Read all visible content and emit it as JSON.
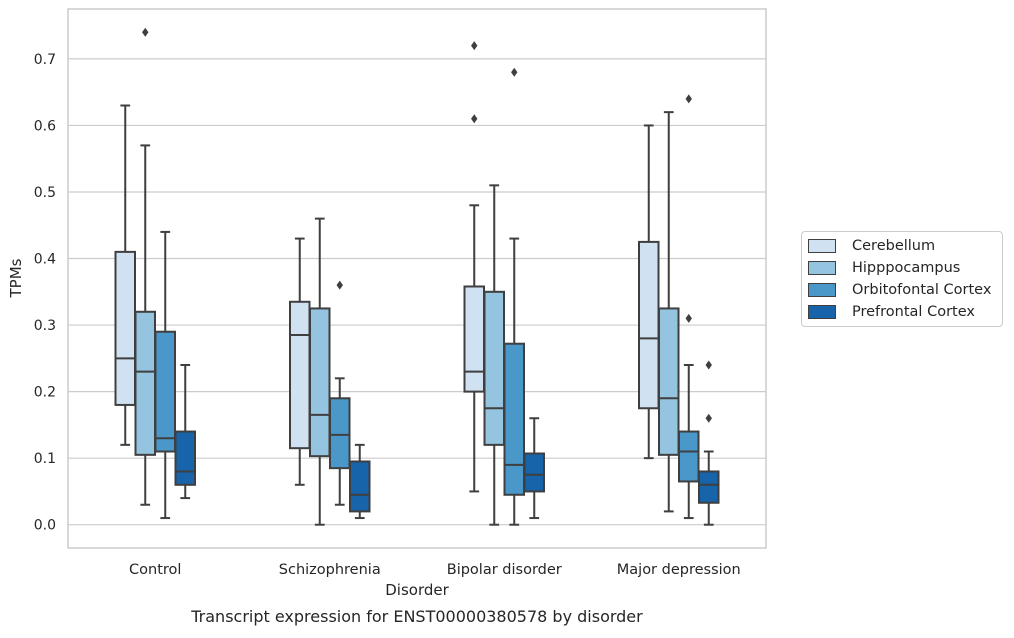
{
  "chart_data": {
    "type": "box",
    "title": "Transcript expression for ENST00000380578 by disorder",
    "xlabel": "Disorder",
    "ylabel": "TPMs",
    "ylim": [
      -0.035,
      0.775
    ],
    "yticks": [
      0.0,
      0.1,
      0.2,
      0.3,
      0.4,
      0.5,
      0.6,
      0.7
    ],
    "ytick_labels": [
      "0.0",
      "0.1",
      "0.2",
      "0.3",
      "0.4",
      "0.5",
      "0.6",
      "0.7"
    ],
    "grid": "horizontal",
    "legend_position": "right",
    "categories": [
      "Control",
      "Schizophrenia",
      "Bipolar disorder",
      "Major depression"
    ],
    "series": [
      {
        "name": "Cerebellum",
        "color": "#d0e1f2",
        "boxes": [
          {
            "whisker_low": 0.12,
            "q1": 0.18,
            "median": 0.25,
            "q3": 0.41,
            "whisker_high": 0.63,
            "outliers": []
          },
          {
            "whisker_low": 0.06,
            "q1": 0.115,
            "median": 0.285,
            "q3": 0.335,
            "whisker_high": 0.43,
            "outliers": []
          },
          {
            "whisker_low": 0.05,
            "q1": 0.2,
            "median": 0.23,
            "q3": 0.358,
            "whisker_high": 0.48,
            "outliers": [
              0.61,
              0.72
            ]
          },
          {
            "whisker_low": 0.1,
            "q1": 0.175,
            "median": 0.28,
            "q3": 0.425,
            "whisker_high": 0.6,
            "outliers": []
          }
        ]
      },
      {
        "name": "Hipppocampus",
        "color": "#94c4df",
        "boxes": [
          {
            "whisker_low": 0.03,
            "q1": 0.105,
            "median": 0.23,
            "q3": 0.32,
            "whisker_high": 0.57,
            "outliers": [
              0.74
            ]
          },
          {
            "whisker_low": 0.0,
            "q1": 0.103,
            "median": 0.165,
            "q3": 0.325,
            "whisker_high": 0.46,
            "outliers": []
          },
          {
            "whisker_low": 0.0,
            "q1": 0.12,
            "median": 0.175,
            "q3": 0.35,
            "whisker_high": 0.51,
            "outliers": []
          },
          {
            "whisker_low": 0.02,
            "q1": 0.105,
            "median": 0.19,
            "q3": 0.325,
            "whisker_high": 0.62,
            "outliers": []
          }
        ]
      },
      {
        "name": "Orbitofontal Cortex",
        "color": "#4a98c9",
        "boxes": [
          {
            "whisker_low": 0.01,
            "q1": 0.11,
            "median": 0.13,
            "q3": 0.29,
            "whisker_high": 0.44,
            "outliers": []
          },
          {
            "whisker_low": 0.03,
            "q1": 0.085,
            "median": 0.135,
            "q3": 0.19,
            "whisker_high": 0.22,
            "outliers": [
              0.36
            ]
          },
          {
            "whisker_low": 0.0,
            "q1": 0.045,
            "median": 0.09,
            "q3": 0.272,
            "whisker_high": 0.43,
            "outliers": [
              0.68
            ]
          },
          {
            "whisker_low": 0.01,
            "q1": 0.065,
            "median": 0.11,
            "q3": 0.14,
            "whisker_high": 0.24,
            "outliers": [
              0.31,
              0.64
            ]
          }
        ]
      },
      {
        "name": "Prefrontal Cortex",
        "color": "#1764ab",
        "boxes": [
          {
            "whisker_low": 0.04,
            "q1": 0.06,
            "median": 0.08,
            "q3": 0.14,
            "whisker_high": 0.24,
            "outliers": []
          },
          {
            "whisker_low": 0.01,
            "q1": 0.02,
            "median": 0.045,
            "q3": 0.095,
            "whisker_high": 0.12,
            "outliers": []
          },
          {
            "whisker_low": 0.01,
            "q1": 0.05,
            "median": 0.075,
            "q3": 0.107,
            "whisker_high": 0.16,
            "outliers": []
          },
          {
            "whisker_low": 0.0,
            "q1": 0.033,
            "median": 0.06,
            "q3": 0.08,
            "whisker_high": 0.11,
            "outliers": [
              0.16,
              0.24
            ]
          }
        ]
      }
    ]
  }
}
